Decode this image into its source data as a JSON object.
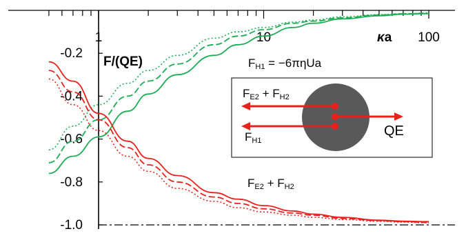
{
  "chart_data": {
    "type": "line",
    "xscale": "log",
    "xlim": [
      0.5,
      100
    ],
    "ylim": [
      -1.0,
      0
    ],
    "x_tick_labels": [
      "1",
      "10",
      "100"
    ],
    "x_tick_values": [
      1,
      10,
      100
    ],
    "y_tick_labels": [
      "-0.2",
      "-0.4",
      "-0.6",
      "-0.8",
      "-1.0"
    ],
    "y_tick_values": [
      -0.2,
      -0.4,
      -0.6,
      -0.8,
      -1.0
    ],
    "xlabel_italic": "κ",
    "xlabel_rest": "a",
    "ylabel": "F/(QE)",
    "annotations": {
      "hydro_prefix": "F",
      "hydro_sub": "H1",
      "hydro_rest": " = −6πηUa",
      "box_fe2_main": "F",
      "box_fe2_sub": "E2",
      "box_plus": " + F",
      "box_fh2_sub": "H2",
      "box_fh1_main": "F",
      "box_fh1_sub": "H1",
      "box_qe": "QE",
      "curve_fe2_main": "F",
      "curve_fe2_sub": "E2",
      "curve_plus": " + F",
      "curve_fh2_sub": "H2"
    },
    "colors": {
      "green": "#1aad55",
      "red": "#e8211c",
      "sphere": "#595959",
      "dot": "#e8211c"
    },
    "series": [
      {
        "group": "green",
        "style": "solid",
        "x": [
          0.5,
          0.7,
          1.0,
          1.5,
          2.0,
          3.0,
          5.0,
          7.0,
          10.0,
          15.0,
          20.0,
          30.0,
          50.0,
          70.0,
          100.0
        ],
        "y": [
          -0.76,
          -0.68,
          -0.59,
          -0.47,
          -0.39,
          -0.3,
          -0.21,
          -0.16,
          -0.12,
          -0.08,
          -0.06,
          -0.04,
          -0.025,
          -0.018,
          -0.015
        ]
      },
      {
        "group": "green",
        "style": "dashed",
        "x": [
          0.5,
          0.7,
          1.0,
          1.5,
          2.0,
          3.0,
          5.0,
          7.0,
          10.0,
          15.0,
          20.0,
          30.0,
          50.0,
          70.0,
          100.0
        ],
        "y": [
          -0.71,
          -0.61,
          -0.51,
          -0.4,
          -0.33,
          -0.25,
          -0.16,
          -0.12,
          -0.09,
          -0.06,
          -0.05,
          -0.035,
          -0.022,
          -0.016,
          -0.014
        ]
      },
      {
        "group": "green",
        "style": "dotted",
        "x": [
          0.5,
          0.7,
          1.0,
          1.5,
          2.0,
          3.0,
          5.0,
          7.0,
          10.0,
          15.0,
          20.0,
          30.0,
          50.0,
          70.0,
          100.0
        ],
        "y": [
          -0.65,
          -0.54,
          -0.44,
          -0.34,
          -0.28,
          -0.21,
          -0.13,
          -0.1,
          -0.08,
          -0.055,
          -0.045,
          -0.03,
          -0.02,
          -0.015,
          -0.012
        ]
      },
      {
        "group": "red",
        "style": "solid",
        "x": [
          0.5,
          0.7,
          1.0,
          1.5,
          2.0,
          3.0,
          5.0,
          7.0,
          10.0,
          15.0,
          20.0,
          30.0,
          50.0,
          70.0,
          100.0
        ],
        "y": [
          -0.24,
          -0.33,
          -0.48,
          -0.61,
          -0.69,
          -0.77,
          -0.85,
          -0.88,
          -0.91,
          -0.935,
          -0.95,
          -0.965,
          -0.978,
          -0.983,
          -0.985
        ]
      },
      {
        "group": "red",
        "style": "dashed",
        "x": [
          0.5,
          0.7,
          1.0,
          1.5,
          2.0,
          3.0,
          5.0,
          7.0,
          10.0,
          15.0,
          20.0,
          30.0,
          50.0,
          70.0,
          100.0
        ],
        "y": [
          -0.28,
          -0.38,
          -0.51,
          -0.64,
          -0.72,
          -0.8,
          -0.87,
          -0.9,
          -0.925,
          -0.945,
          -0.955,
          -0.97,
          -0.98,
          -0.985,
          -0.988
        ]
      },
      {
        "group": "red",
        "style": "dotted",
        "x": [
          0.5,
          0.7,
          1.0,
          1.5,
          2.0,
          3.0,
          5.0,
          7.0,
          10.0,
          15.0,
          20.0,
          30.0,
          50.0,
          70.0,
          100.0
        ],
        "y": [
          -0.32,
          -0.44,
          -0.56,
          -0.68,
          -0.75,
          -0.83,
          -0.89,
          -0.92,
          -0.94,
          -0.955,
          -0.965,
          -0.975,
          -0.983,
          -0.987,
          -0.99
        ]
      }
    ],
    "reference_lines": [
      {
        "y": -1.0,
        "style": "dash-dot"
      }
    ],
    "grid": false,
    "legend": "none"
  }
}
